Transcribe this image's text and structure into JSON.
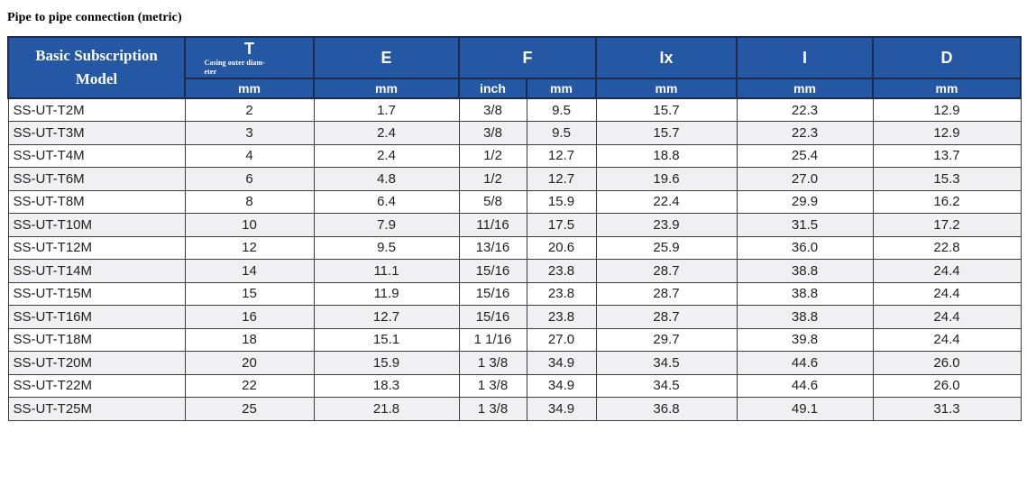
{
  "colors": {
    "header_blue": "#2458a5",
    "border_navy": "#1c2b4a",
    "data_border": "#3c3c3c",
    "alt_row": "#f0f0f2",
    "data_text": "#222222",
    "title_text": "#000000"
  },
  "page_title": "Pipe to pipe connection (metric)",
  "table": {
    "model_header": {
      "line1": "Basic Subscription",
      "line2": "Model"
    },
    "t_header": {
      "label": "T",
      "sub_line1": "Casing outer diam-",
      "sub_line2": "eter",
      "unit": "mm"
    },
    "e_header": {
      "label": "E",
      "unit": "mm"
    },
    "f_header": {
      "label": "F",
      "unit_inch": "inch",
      "unit_mm": "mm"
    },
    "ix_header": {
      "label": "Ix",
      "unit": "mm"
    },
    "i_header": {
      "label": "I",
      "unit": "mm"
    },
    "d_header": {
      "label": "D",
      "unit": "mm"
    },
    "column_keys": [
      "model",
      "t_mm",
      "e_mm",
      "f_inch",
      "f_mm",
      "ix_mm",
      "i_mm",
      "d_mm"
    ],
    "rows": [
      {
        "model": "SS-UT-T2M",
        "values": [
          "2",
          "1.7",
          "3/8",
          "9.5",
          "15.7",
          "22.3",
          "12.9"
        ]
      },
      {
        "model": "SS-UT-T3M",
        "values": [
          "3",
          "2.4",
          "3/8",
          "9.5",
          "15.7",
          "22.3",
          "12.9"
        ]
      },
      {
        "model": "SS-UT-T4M",
        "values": [
          "4",
          "2.4",
          "1/2",
          "12.7",
          "18.8",
          "25.4",
          "13.7"
        ]
      },
      {
        "model": "SS-UT-T6M",
        "values": [
          "6",
          "4.8",
          "1/2",
          "12.7",
          "19.6",
          "27.0",
          "15.3"
        ]
      },
      {
        "model": "SS-UT-T8M",
        "values": [
          "8",
          "6.4",
          "5/8",
          "15.9",
          "22.4",
          "29.9",
          "16.2"
        ]
      },
      {
        "model": "SS-UT-T10M",
        "values": [
          "10",
          "7.9",
          "11/16",
          "17.5",
          "23.9",
          "31.5",
          "17.2"
        ]
      },
      {
        "model": "SS-UT-T12M",
        "values": [
          "12",
          "9.5",
          "13/16",
          "20.6",
          "25.9",
          "36.0",
          "22.8"
        ]
      },
      {
        "model": "SS-UT-T14M",
        "values": [
          "14",
          "11.1",
          "15/16",
          "23.8",
          "28.7",
          "38.8",
          "24.4"
        ]
      },
      {
        "model": "SS-UT-T15M",
        "values": [
          "15",
          "11.9",
          "15/16",
          "23.8",
          "28.7",
          "38.8",
          "24.4"
        ]
      },
      {
        "model": "SS-UT-T16M",
        "values": [
          "16",
          "12.7",
          "15/16",
          "23.8",
          "28.7",
          "38.8",
          "24.4"
        ]
      },
      {
        "model": "SS-UT-T18M",
        "values": [
          "18",
          "15.1",
          "1 1/16",
          "27.0",
          "29.7",
          "39.8",
          "24.4"
        ]
      },
      {
        "model": "SS-UT-T20M",
        "values": [
          "20",
          "15.9",
          "1 3/8",
          "34.9",
          "34.5",
          "44.6",
          "26.0"
        ]
      },
      {
        "model": "SS-UT-T22M",
        "values": [
          "22",
          "18.3",
          "1 3/8",
          "34.9",
          "34.5",
          "44.6",
          "26.0"
        ]
      },
      {
        "model": "SS-UT-T25M",
        "values": [
          "25",
          "21.8",
          "1 3/8",
          "34.9",
          "36.8",
          "49.1",
          "31.3"
        ]
      }
    ]
  }
}
